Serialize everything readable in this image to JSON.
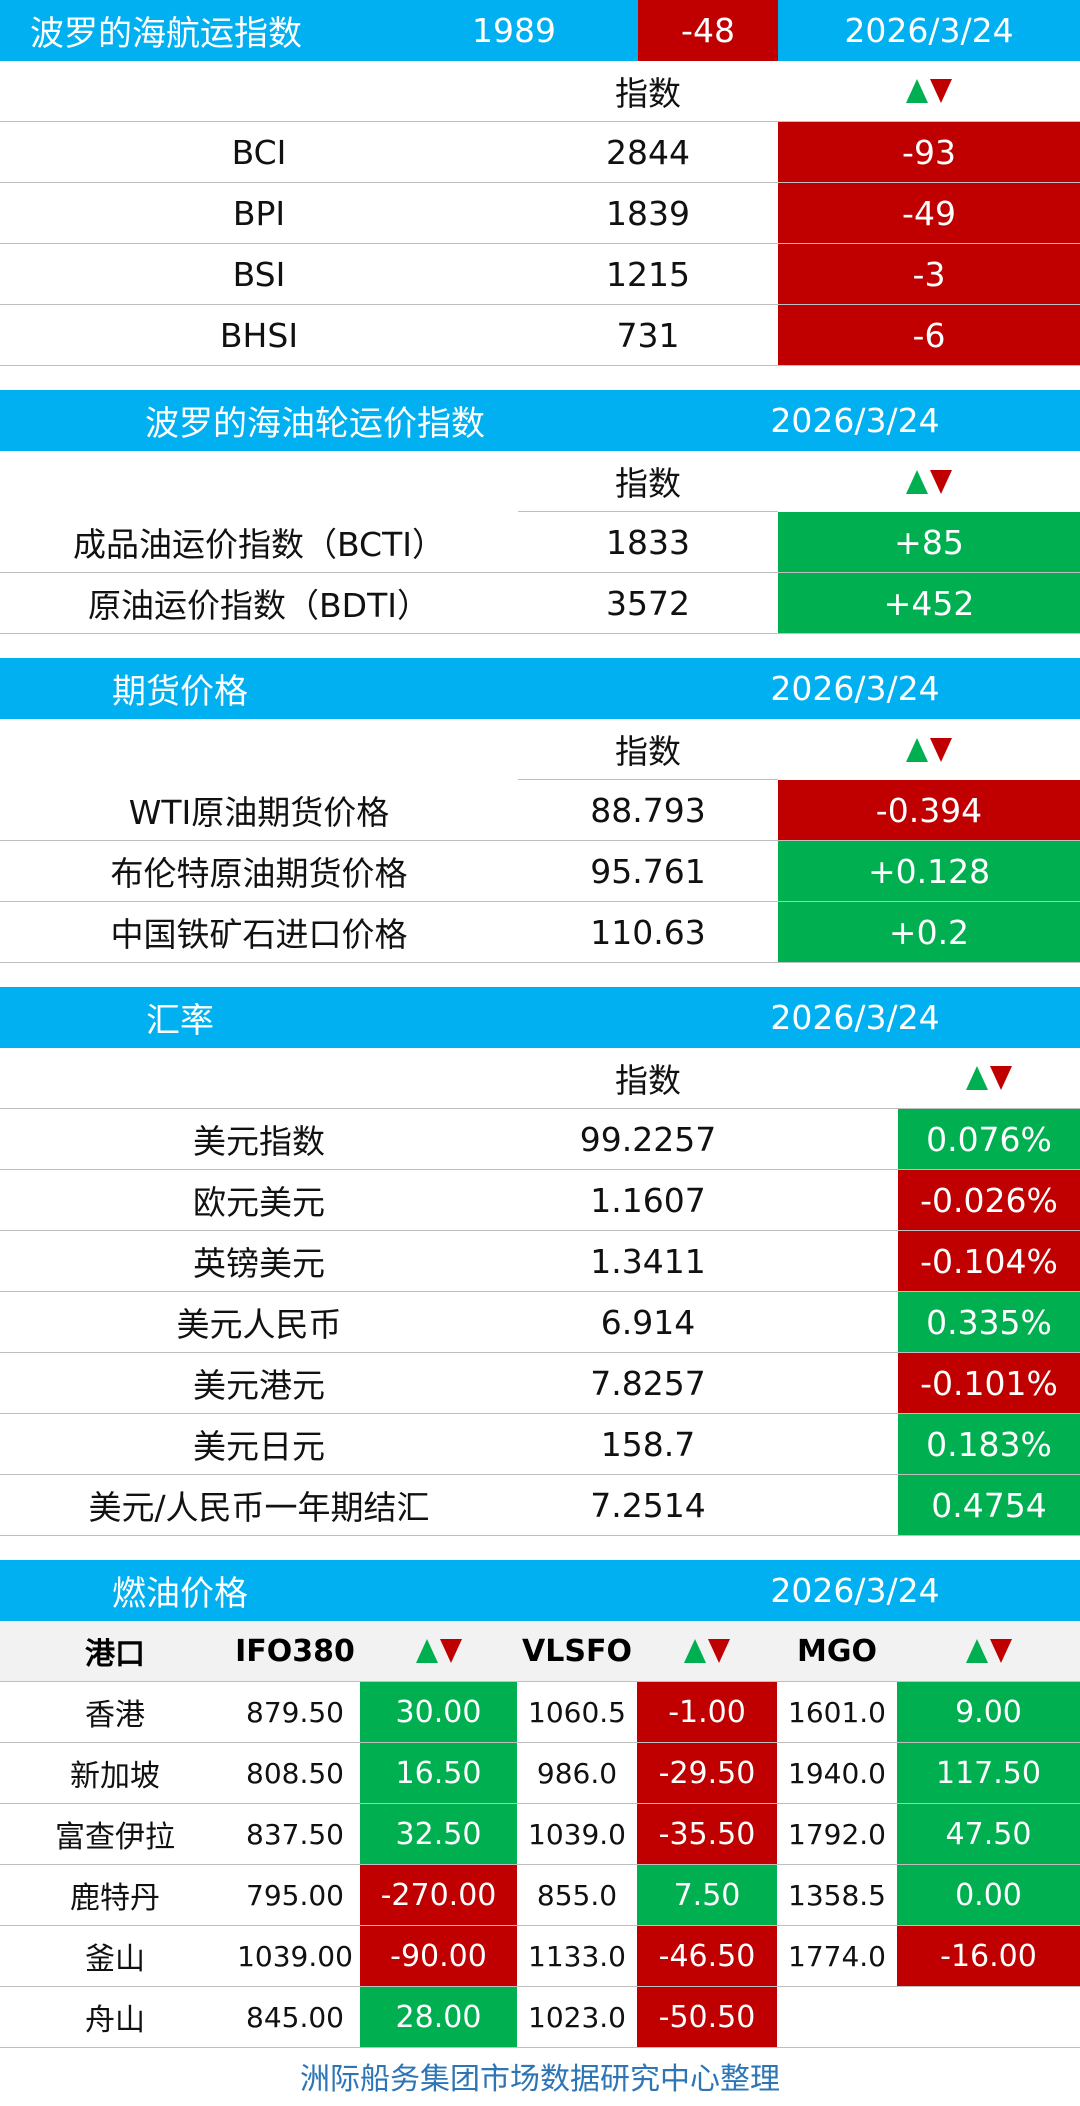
{
  "bdi": {
    "title": "波罗的海航运指数",
    "value": "1989",
    "change": "-48",
    "date": "2026/3/24",
    "col_index": "指数",
    "rows": [
      {
        "name": "BCI",
        "value": "2844",
        "change": "-93",
        "dir": "down"
      },
      {
        "name": "BPI",
        "value": "1839",
        "change": "-49",
        "dir": "down"
      },
      {
        "name": "BSI",
        "value": "1215",
        "change": "-3",
        "dir": "down"
      },
      {
        "name": "BHSI",
        "value": "731",
        "change": "-6",
        "dir": "down"
      }
    ]
  },
  "tanker": {
    "title": "波罗的海油轮运价指数",
    "date": "2026/3/24",
    "col_index": "指数",
    "rows": [
      {
        "name": "成品油运价指数（BCTI）",
        "value": "1833",
        "change": "+85",
        "dir": "up"
      },
      {
        "name": "原油运价指数（BDTI）",
        "value": "3572",
        "change": "+452",
        "dir": "up"
      }
    ]
  },
  "futures": {
    "title": "期货价格",
    "date": "2026/3/24",
    "col_index": "指数",
    "rows": [
      {
        "name": "WTI原油期货价格",
        "value": "88.793",
        "change": "-0.394",
        "dir": "down"
      },
      {
        "name": "布伦特原油期货价格",
        "value": "95.761",
        "change": "+0.128",
        "dir": "up"
      },
      {
        "name": "中国铁矿石进口价格",
        "value": "110.63",
        "change": "+0.2",
        "dir": "up"
      }
    ]
  },
  "fx": {
    "title": "汇率",
    "date": "2026/3/24",
    "col_index": "指数",
    "rows": [
      {
        "name": "美元指数",
        "value": "99.2257",
        "change": "0.076%",
        "dir": "up"
      },
      {
        "name": "欧元美元",
        "value": "1.1607",
        "change": "-0.026%",
        "dir": "down"
      },
      {
        "name": "英镑美元",
        "value": "1.3411",
        "change": "-0.104%",
        "dir": "down"
      },
      {
        "name": "美元人民币",
        "value": "6.914",
        "change": "0.335%",
        "dir": "up"
      },
      {
        "name": "美元港元",
        "value": "7.8257",
        "change": "-0.101%",
        "dir": "down"
      },
      {
        "name": "美元日元",
        "value": "158.7",
        "change": "0.183%",
        "dir": "up"
      },
      {
        "name": "美元/人民币一年期结汇",
        "value": "7.2514",
        "change": "0.4754",
        "dir": "up"
      }
    ]
  },
  "fuel": {
    "title": "燃油价格",
    "date": "2026/3/24",
    "headers": {
      "port": "港口",
      "ifo": "IFO380",
      "vlsfo": "VLSFO",
      "mgo": "MGO"
    },
    "rows": [
      {
        "port": "香港",
        "ifo": "879.50",
        "ifo_chg": "30.00",
        "ifo_dir": "up",
        "vlsfo": "1060.5",
        "vlsfo_chg": "-1.00",
        "vlsfo_dir": "down",
        "mgo": "1601.0",
        "mgo_chg": "9.00",
        "mgo_dir": "up"
      },
      {
        "port": "新加坡",
        "ifo": "808.50",
        "ifo_chg": "16.50",
        "ifo_dir": "up",
        "vlsfo": "986.0",
        "vlsfo_chg": "-29.50",
        "vlsfo_dir": "down",
        "mgo": "1940.0",
        "mgo_chg": "117.50",
        "mgo_dir": "up"
      },
      {
        "port": "富查伊拉",
        "ifo": "837.50",
        "ifo_chg": "32.50",
        "ifo_dir": "up",
        "vlsfo": "1039.0",
        "vlsfo_chg": "-35.50",
        "vlsfo_dir": "down",
        "mgo": "1792.0",
        "mgo_chg": "47.50",
        "mgo_dir": "up"
      },
      {
        "port": "鹿特丹",
        "ifo": "795.00",
        "ifo_chg": "-270.00",
        "ifo_dir": "down",
        "vlsfo": "855.0",
        "vlsfo_chg": "7.50",
        "vlsfo_dir": "up",
        "mgo": "1358.5",
        "mgo_chg": "0.00",
        "mgo_dir": "up"
      },
      {
        "port": "釜山",
        "ifo": "1039.00",
        "ifo_chg": "-90.00",
        "ifo_dir": "down",
        "vlsfo": "1133.0",
        "vlsfo_chg": "-46.50",
        "vlsfo_dir": "down",
        "mgo": "1774.0",
        "mgo_chg": "-16.00",
        "mgo_dir": "down"
      },
      {
        "port": "舟山",
        "ifo": "845.00",
        "ifo_chg": "28.00",
        "ifo_dir": "up",
        "vlsfo": "1023.0",
        "vlsfo_chg": "-50.50",
        "vlsfo_dir": "down",
        "mgo": "",
        "mgo_chg": "",
        "mgo_dir": "none"
      }
    ]
  },
  "footer": "洲际船务集团市场数据研究中心整理",
  "colors": {
    "header": "#00b0f0",
    "up": "#00b050",
    "down": "#c00000"
  }
}
